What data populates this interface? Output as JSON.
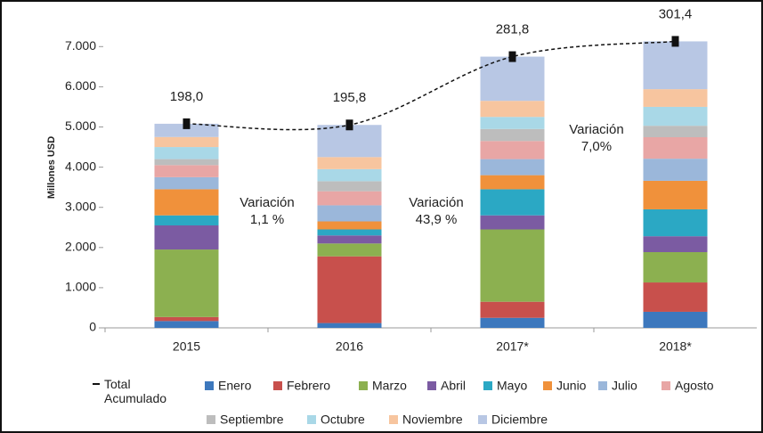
{
  "chart_data": {
    "type": "stacked_bar",
    "y_axis_label": "Millones USD",
    "categories": [
      "2015",
      "2016",
      "2017*",
      "2018*"
    ],
    "ylim": [
      0,
      8000
    ],
    "yticks": [
      0,
      {
        "value": 1000,
        "label": "1.000"
      },
      {
        "value": 2000,
        "label": "2.000"
      },
      {
        "value": 3000,
        "label": "3.000"
      },
      {
        "value": 4000,
        "label": "4.000"
      },
      {
        "value": 5000,
        "label": "5.000"
      },
      {
        "value": 6000,
        "label": "6.000"
      },
      {
        "value": 7000,
        "label": "7.000"
      }
    ],
    "series": [
      {
        "name": "Enero",
        "color": "#3d78bd",
        "values": [
          170,
          120,
          250,
          400
        ]
      },
      {
        "name": "Febrero",
        "color": "#c8504c",
        "values": [
          100,
          1660,
          400,
          730
        ]
      },
      {
        "name": "Marzo",
        "color": "#8cb050",
        "values": [
          1680,
          320,
          1800,
          755
        ]
      },
      {
        "name": "Abril",
        "color": "#7b5ba2",
        "values": [
          600,
          200,
          350,
          395
        ]
      },
      {
        "name": "Mayo",
        "color": "#2ba8c4",
        "values": [
          250,
          150,
          650,
          670
        ]
      },
      {
        "name": "Junio",
        "color": "#f0913b",
        "values": [
          650,
          200,
          350,
          710
        ]
      },
      {
        "name": "Julio",
        "color": "#9bb7da",
        "values": [
          300,
          400,
          400,
          550
        ]
      },
      {
        "name": "Agosto",
        "color": "#e8a6a5",
        "values": [
          300,
          350,
          450,
          535
        ]
      },
      {
        "name": "Septiembre",
        "color": "#bdbdbd",
        "values": [
          150,
          250,
          300,
          285
        ]
      },
      {
        "name": "Octubre",
        "color": "#a9d8e7",
        "values": [
          300,
          300,
          300,
          470
        ]
      },
      {
        "name": "Noviembre",
        "color": "#f7c59f",
        "values": [
          250,
          300,
          400,
          440
        ]
      },
      {
        "name": "Diciembre",
        "color": "#b8c7e4",
        "values": [
          330,
          800,
          1100,
          1190
        ]
      }
    ],
    "line": {
      "name": "Total Acumulado",
      "color": "#111111",
      "values": [
        5080,
        5050,
        6750,
        7130
      ]
    },
    "point_labels": [
      "198,0",
      "195,8",
      "281,8",
      "301,4"
    ],
    "annotations": [
      [
        "Variación",
        "1,1 %"
      ],
      [
        "Variación",
        "43,9 %"
      ],
      [
        "Variación",
        "7,0%"
      ]
    ]
  }
}
